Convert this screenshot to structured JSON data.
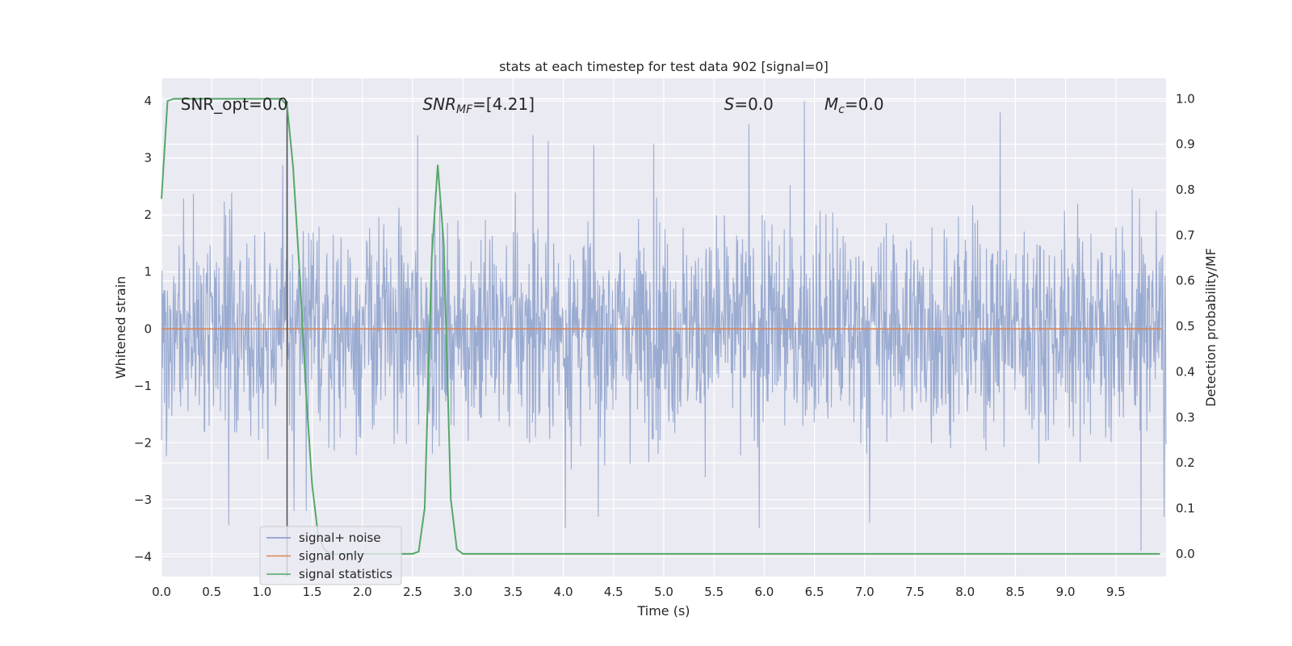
{
  "chart_data": {
    "type": "line",
    "title": "stats at each timestep for test data 902 [signal=0]",
    "xlabel": "Time (s)",
    "ylabel_left": "Whitened strain",
    "ylabel_right": "Detection probability/MF",
    "xlim": [
      0.0,
      10.0
    ],
    "ylim_left": [
      -4.35,
      4.4
    ],
    "ylim_right": [
      -0.05,
      1.045
    ],
    "xticks": [
      0.0,
      0.5,
      1.0,
      1.5,
      2.0,
      2.5,
      3.0,
      3.5,
      4.0,
      4.5,
      5.0,
      5.5,
      6.0,
      6.5,
      7.0,
      7.5,
      8.0,
      8.5,
      9.0,
      9.5
    ],
    "xtick_labels": [
      "0.0",
      "0.5",
      "1.0",
      "1.5",
      "2.0",
      "2.5",
      "3.0",
      "3.5",
      "4.0",
      "4.5",
      "5.0",
      "5.5",
      "6.0",
      "6.5",
      "7.0",
      "7.5",
      "8.0",
      "8.5",
      "9.0",
      "9.5"
    ],
    "yticks_left": [
      4,
      3,
      2,
      1,
      0,
      -1,
      -2,
      -3,
      -4
    ],
    "ytick_labels_left": [
      "4",
      "3",
      "2",
      "1",
      "0",
      "−1",
      "−2",
      "−3",
      "−4"
    ],
    "yticks_right": [
      1.0,
      0.9,
      0.8,
      0.7,
      0.6,
      0.5,
      0.4,
      0.3,
      0.2,
      0.1,
      0.0
    ],
    "ytick_labels_right": [
      "1.0",
      "0.9",
      "0.8",
      "0.7",
      "0.6",
      "0.5",
      "0.4",
      "0.3",
      "0.2",
      "0.1",
      "0.0"
    ],
    "grid": true,
    "legend_position": "lower-left",
    "annotations": {
      "snr_opt": "SNR_opt=0.0",
      "snr_mf_main": "SNR",
      "snr_mf_sub": "MF",
      "snr_mf_value": "=[4.21]",
      "s_main": "S",
      "s_value": "=0.0",
      "mc_main": "M",
      "mc_sub": "c",
      "mc_value": "=0.0"
    },
    "vertical_marker_x": 1.25,
    "series": [
      {
        "name": "signal+ noise",
        "axis": "left",
        "color": "#7f96c6",
        "noise_std": 0.92,
        "extremes": [
          [
            0.67,
            -3.45
          ],
          [
            1.25,
            3.9
          ],
          [
            1.32,
            -3.2
          ],
          [
            1.44,
            -3.2
          ],
          [
            2.55,
            3.4
          ],
          [
            3.7,
            3.4
          ],
          [
            3.85,
            3.3
          ],
          [
            4.02,
            -3.5
          ],
          [
            4.35,
            -3.3
          ],
          [
            4.9,
            3.25
          ],
          [
            5.85,
            3.6
          ],
          [
            5.95,
            -3.5
          ],
          [
            6.4,
            4.0
          ],
          [
            7.05,
            -3.4
          ],
          [
            8.35,
            3.8
          ],
          [
            9.75,
            -3.9
          ],
          [
            9.98,
            -3.3
          ]
        ]
      },
      {
        "name": "signal only",
        "axis": "left",
        "color": "#dd8452",
        "constant": 0.0
      },
      {
        "name": "signal statistics",
        "axis": "right",
        "color": "#55a868",
        "x": [
          0.0,
          0.06,
          0.12,
          0.25,
          0.5,
          0.75,
          1.0,
          1.13,
          1.19,
          1.25,
          1.31,
          1.38,
          1.44,
          1.5,
          1.56,
          1.62,
          1.69,
          1.75,
          1.88,
          2.0,
          2.25,
          2.5,
          2.56,
          2.62,
          2.69,
          2.75,
          2.81,
          2.88,
          2.94,
          3.0,
          3.25,
          5.0,
          7.5,
          9.94
        ],
        "y": [
          0.78,
          0.995,
          1.0,
          1.0,
          1.0,
          1.0,
          1.0,
          1.0,
          1.0,
          0.985,
          0.85,
          0.6,
          0.35,
          0.15,
          0.04,
          0.01,
          0.0,
          0.0,
          0.0,
          0.0,
          0.0,
          0.0,
          0.005,
          0.1,
          0.65,
          0.855,
          0.68,
          0.12,
          0.01,
          0.0,
          0.0,
          0.0,
          0.0,
          0.0
        ]
      }
    ]
  }
}
